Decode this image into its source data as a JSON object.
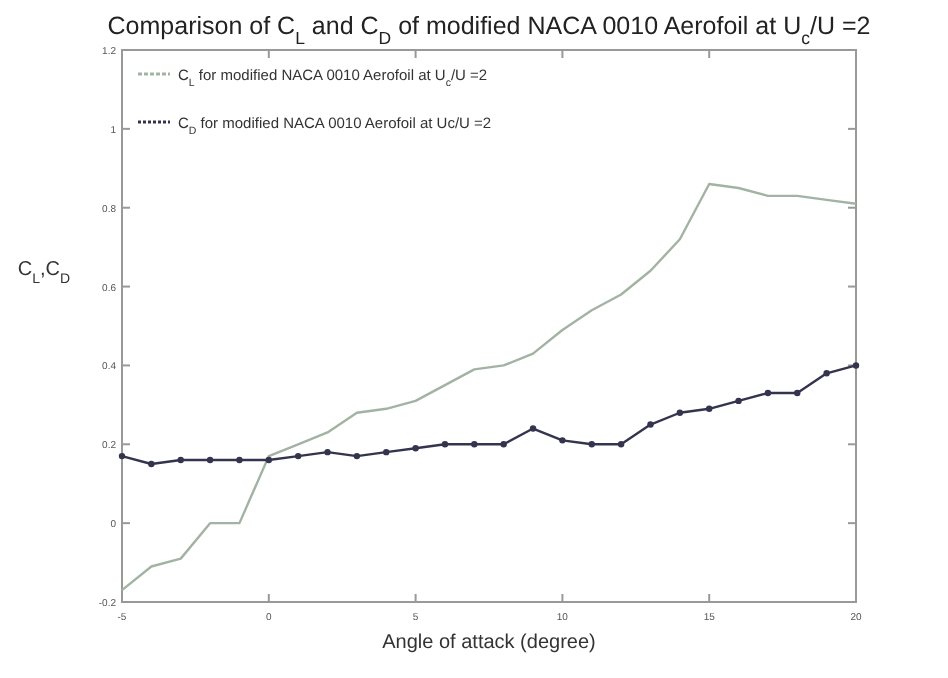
{
  "chart_data": {
    "type": "line",
    "title": "Comparison of C$_{L}$ and C$_{D}$ of modified NACA 0010 Aerofoil at U$_{c}$/U =2",
    "xlabel": "Angle of attack (degree)",
    "ylabel": "C$_{L}$,C$_{D}$",
    "x": [
      -5,
      -4,
      -3,
      -2,
      -1,
      0,
      1,
      2,
      3,
      4,
      5,
      6,
      7,
      8,
      9,
      10,
      11,
      12,
      13,
      14,
      15,
      16,
      17,
      18,
      19,
      20
    ],
    "series": [
      {
        "name": "C$_{L}$ for modified NACA 0010 Aerofoil at U$_{c}$/U =2",
        "color": "#a3b3a3",
        "marker": "none",
        "values": [
          -0.17,
          -0.11,
          -0.09,
          0,
          0,
          0.17,
          0.2,
          0.23,
          0.28,
          0.29,
          0.31,
          0.35,
          0.39,
          0.4,
          0.43,
          0.49,
          0.54,
          0.58,
          0.64,
          0.72,
          0.86,
          0.85,
          0.83,
          0.83,
          0.82,
          0.81
        ]
      },
      {
        "name": "C$_{D}$ for modified NACA 0010 Aerofoil at Uc/U =2",
        "color": "#34344e",
        "marker": "circle",
        "values": [
          0.17,
          0.15,
          0.16,
          0.16,
          0.16,
          0.16,
          0.17,
          0.18,
          0.17,
          0.18,
          0.19,
          0.2,
          0.2,
          0.2,
          0.24,
          0.21,
          0.2,
          0.2,
          0.25,
          0.28,
          0.29,
          0.31,
          0.33,
          0.33,
          0.38,
          0.4
        ]
      }
    ],
    "xlim": [
      -5,
      20
    ],
    "xticks": [
      -5,
      0,
      5,
      10,
      15,
      20
    ],
    "ylim": [
      -0.2,
      1.2
    ],
    "yticks": [
      -0.2,
      0,
      0.2,
      0.4,
      0.6,
      0.8,
      1,
      1.2
    ],
    "legend": "top left",
    "grid": false,
    "line_style": "solid"
  }
}
